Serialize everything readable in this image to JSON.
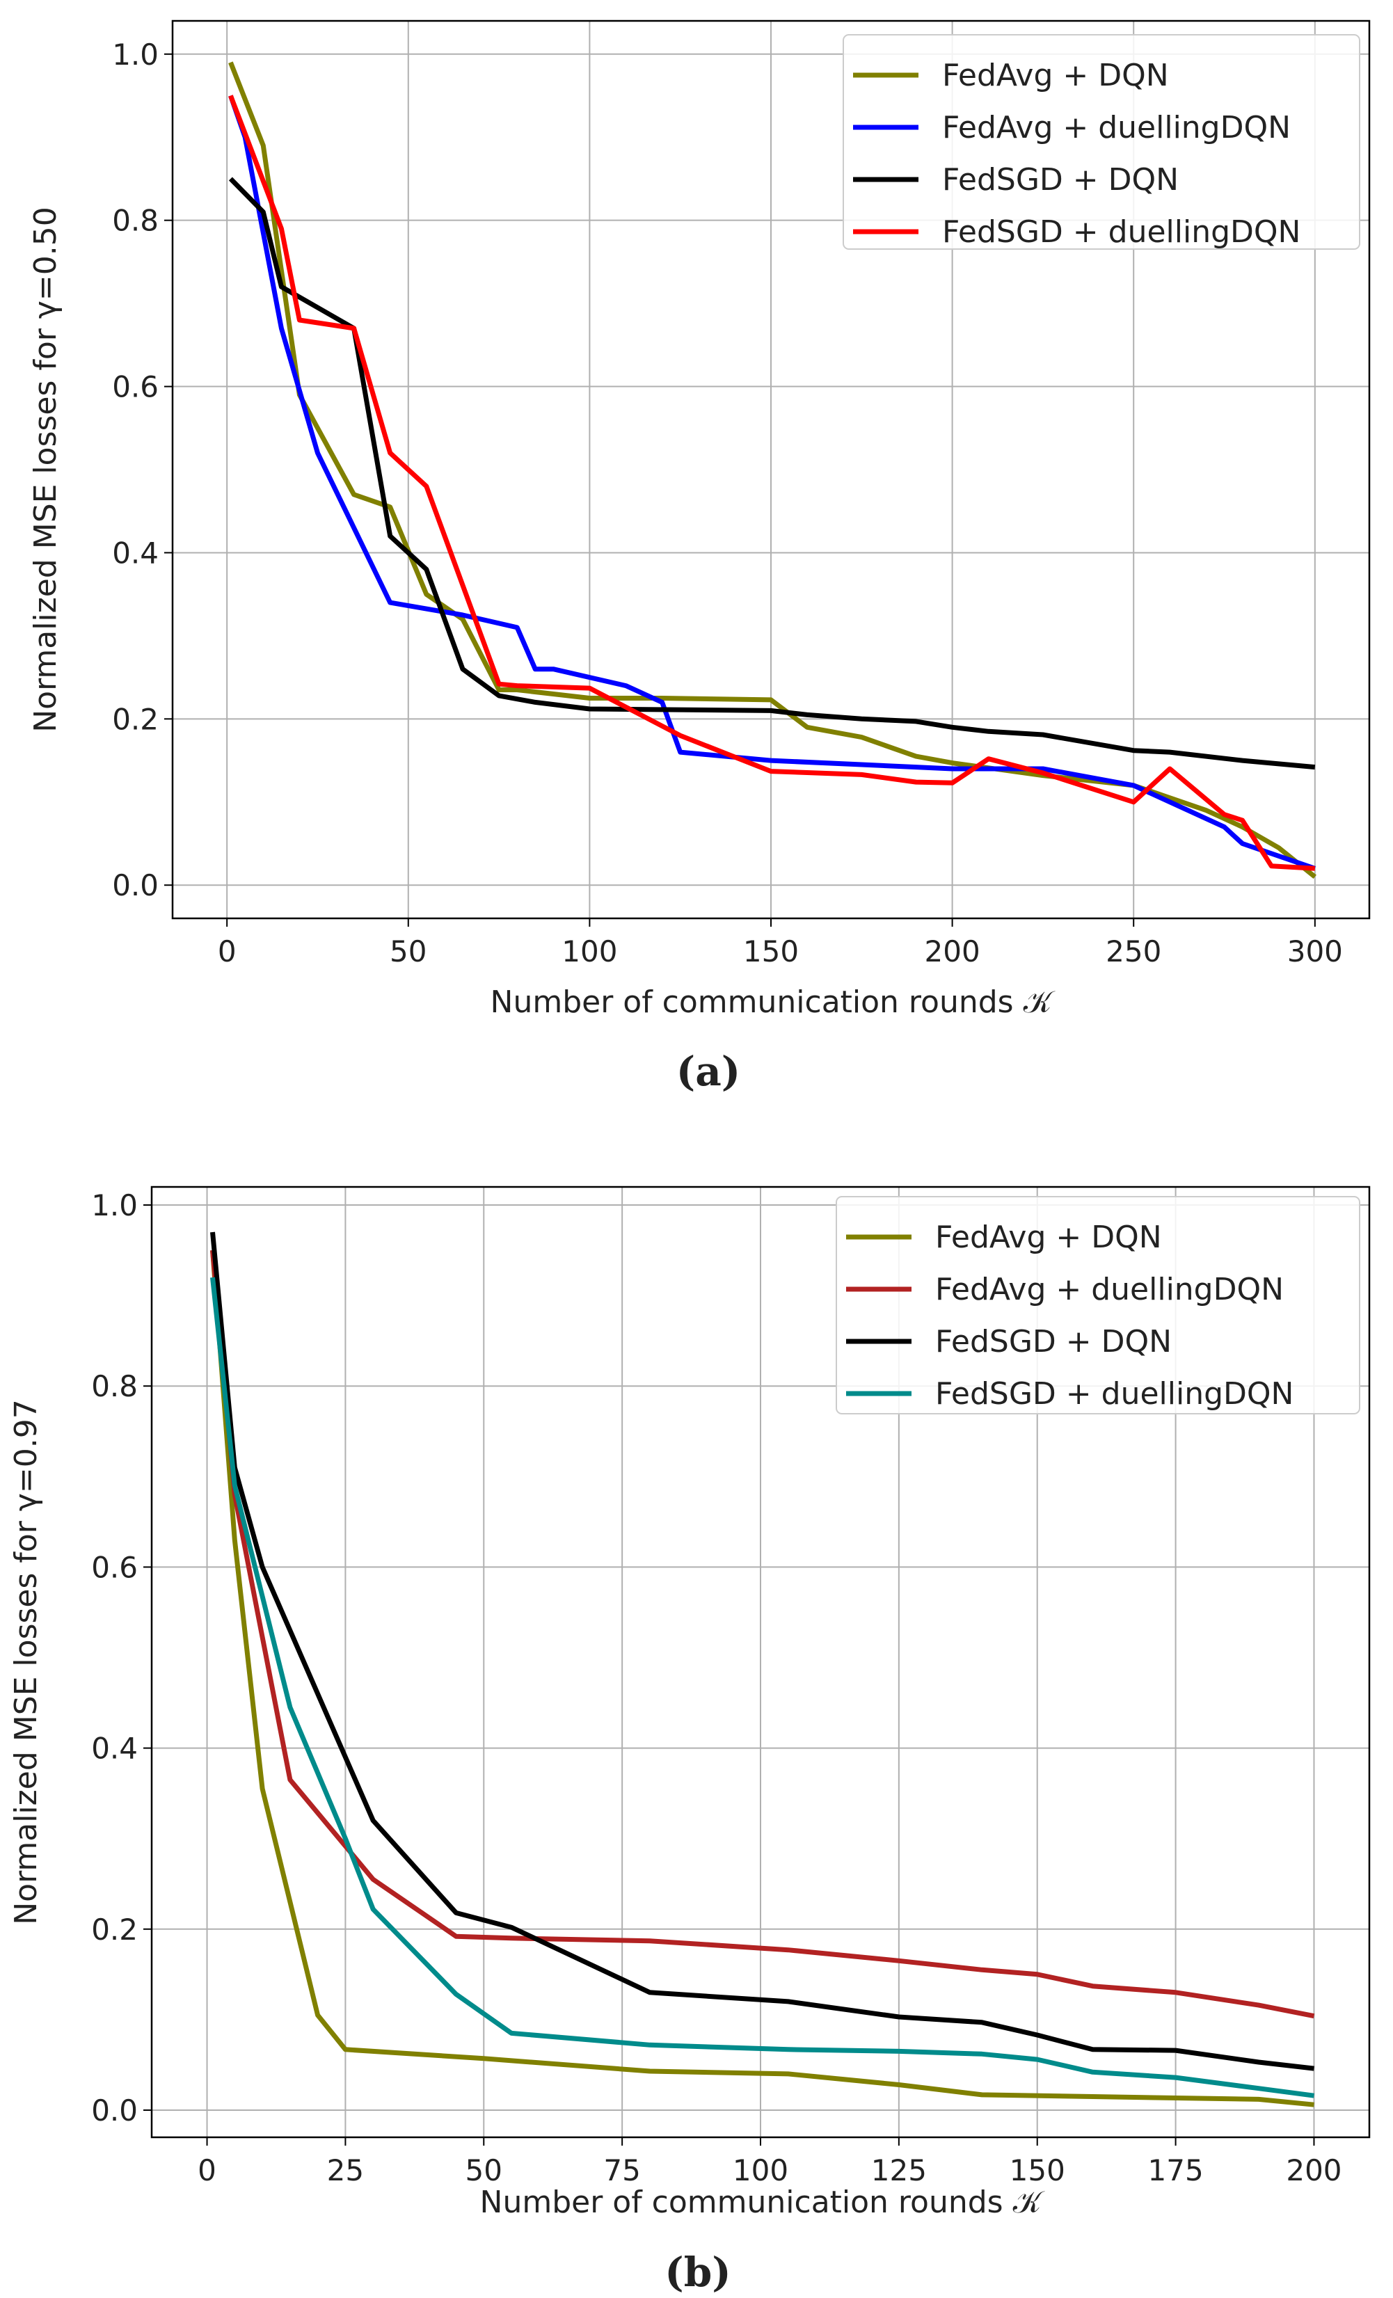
{
  "chart_data": [
    {
      "type": "line",
      "panel_label": "(a)",
      "title": "",
      "xlabel": "Number of communication rounds 𝒦",
      "ylabel": "Normalized MSE losses for γ=0.50",
      "xlim": [
        -15,
        315
      ],
      "ylim": [
        -0.04,
        1.04
      ],
      "xticks": [
        0,
        50,
        100,
        150,
        200,
        250,
        300
      ],
      "yticks": [
        0.0,
        0.2,
        0.4,
        0.6,
        0.8,
        1.0
      ],
      "xtick_labels": [
        "0",
        "50",
        "100",
        "150",
        "200",
        "250",
        "300"
      ],
      "ytick_labels": [
        "0.0",
        "0.2",
        "0.4",
        "0.6",
        "0.8",
        "1.0"
      ],
      "grid": true,
      "legend_position": "top-right",
      "series": [
        {
          "name": "FedAvg + DQN",
          "color": "#808000",
          "x": [
            1,
            10,
            20,
            35,
            45,
            55,
            65,
            75,
            80,
            100,
            120,
            150,
            160,
            175,
            190,
            200,
            225,
            250,
            270,
            280,
            290,
            300
          ],
          "y": [
            0.99,
            0.89,
            0.59,
            0.47,
            0.455,
            0.35,
            0.32,
            0.235,
            0.235,
            0.225,
            0.225,
            0.223,
            0.19,
            0.178,
            0.155,
            0.147,
            0.132,
            0.12,
            0.09,
            0.07,
            0.045,
            0.01
          ]
        },
        {
          "name": "FedAvg + duellingDQN",
          "color": "#0000ff",
          "x": [
            1,
            5,
            15,
            25,
            45,
            65,
            80,
            85,
            90,
            110,
            120,
            125,
            150,
            175,
            200,
            225,
            250,
            275,
            280,
            300
          ],
          "y": [
            0.95,
            0.9,
            0.67,
            0.52,
            0.34,
            0.325,
            0.31,
            0.26,
            0.26,
            0.24,
            0.22,
            0.16,
            0.15,
            0.145,
            0.14,
            0.14,
            0.12,
            0.07,
            0.05,
            0.02
          ]
        },
        {
          "name": "FedSGD + DQN",
          "color": "#000000",
          "x": [
            1,
            10,
            15,
            35,
            45,
            55,
            65,
            75,
            85,
            100,
            150,
            160,
            175,
            190,
            200,
            210,
            225,
            250,
            260,
            280,
            300
          ],
          "y": [
            0.85,
            0.81,
            0.72,
            0.67,
            0.42,
            0.38,
            0.26,
            0.228,
            0.22,
            0.212,
            0.21,
            0.205,
            0.2,
            0.197,
            0.19,
            0.185,
            0.181,
            0.162,
            0.16,
            0.15,
            0.142
          ]
        },
        {
          "name": "FedSGD + duellingDQN",
          "color": "#ff0000",
          "x": [
            1,
            15,
            20,
            35,
            45,
            55,
            75,
            80,
            100,
            125,
            150,
            175,
            190,
            200,
            210,
            225,
            250,
            260,
            275,
            280,
            288,
            300
          ],
          "y": [
            0.95,
            0.79,
            0.68,
            0.67,
            0.52,
            0.48,
            0.242,
            0.24,
            0.237,
            0.18,
            0.137,
            0.133,
            0.124,
            0.123,
            0.152,
            0.135,
            0.1,
            0.14,
            0.085,
            0.078,
            0.023,
            0.02
          ]
        }
      ]
    },
    {
      "type": "line",
      "panel_label": "(b)",
      "title": "",
      "xlabel": "Number of communication rounds 𝒦",
      "ylabel": "Normalized MSE losses for γ=0.97",
      "xlim": [
        -10,
        210
      ],
      "ylim": [
        -0.03,
        1.02
      ],
      "xticks": [
        0,
        25,
        50,
        75,
        100,
        125,
        150,
        175,
        200
      ],
      "yticks": [
        0.0,
        0.2,
        0.4,
        0.6,
        0.8,
        1.0
      ],
      "xtick_labels": [
        "0",
        "25",
        "50",
        "75",
        "100",
        "125",
        "150",
        "175",
        "200"
      ],
      "ytick_labels": [
        "0.0",
        "0.2",
        "0.4",
        "0.6",
        "0.8",
        "1.0"
      ],
      "grid": true,
      "legend_position": "top-right",
      "series": [
        {
          "name": "FedAvg + DQN",
          "color": "#808000",
          "x": [
            1,
            5,
            10,
            15,
            20,
            25,
            50,
            80,
            105,
            125,
            140,
            160,
            190,
            200
          ],
          "y": [
            0.95,
            0.63,
            0.355,
            0.23,
            0.105,
            0.067,
            0.057,
            0.043,
            0.04,
            0.028,
            0.017,
            0.015,
            0.012,
            0.006
          ]
        },
        {
          "name": "FedAvg + duellingDQN",
          "color": "#b22222",
          "x": [
            1,
            5,
            15,
            30,
            45,
            55,
            80,
            105,
            125,
            140,
            150,
            160,
            175,
            190,
            200
          ],
          "y": [
            0.95,
            0.68,
            0.365,
            0.255,
            0.192,
            0.19,
            0.187,
            0.177,
            0.165,
            0.155,
            0.15,
            0.137,
            0.13,
            0.116,
            0.104
          ]
        },
        {
          "name": "FedSGD + DQN",
          "color": "#000000",
          "x": [
            1,
            5,
            10,
            20,
            30,
            45,
            55,
            80,
            105,
            125,
            140,
            150,
            160,
            175,
            190,
            200
          ],
          "y": [
            0.97,
            0.71,
            0.6,
            0.46,
            0.32,
            0.218,
            0.202,
            0.13,
            0.12,
            0.103,
            0.097,
            0.083,
            0.067,
            0.066,
            0.053,
            0.046
          ]
        },
        {
          "name": "FedSGD + duellingDQN",
          "color": "#008b8b",
          "x": [
            1,
            5,
            15,
            25,
            30,
            45,
            55,
            80,
            105,
            125,
            140,
            150,
            160,
            175,
            190,
            200
          ],
          "y": [
            0.92,
            0.69,
            0.445,
            0.3,
            0.222,
            0.128,
            0.085,
            0.072,
            0.067,
            0.065,
            0.062,
            0.056,
            0.042,
            0.036,
            0.024,
            0.016
          ]
        }
      ]
    }
  ]
}
